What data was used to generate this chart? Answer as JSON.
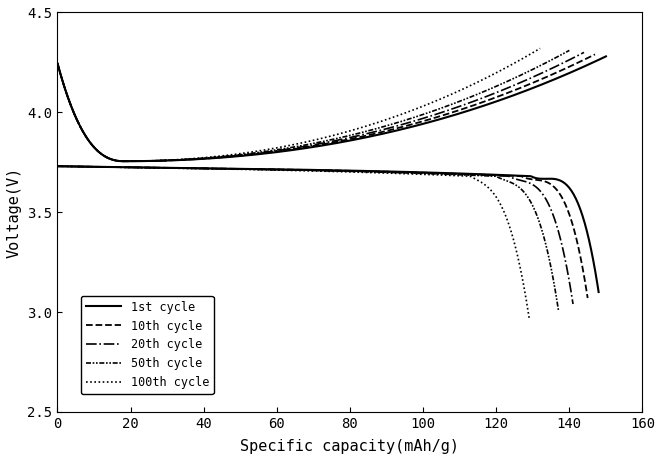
{
  "title": "",
  "xlabel": "Specific capacity(mAh/g)",
  "ylabel": "Voltage(V)",
  "xlim": [
    0,
    160
  ],
  "ylim": [
    2.5,
    4.5
  ],
  "xticks": [
    0,
    20,
    40,
    60,
    80,
    100,
    120,
    140,
    160
  ],
  "yticks": [
    2.5,
    3.0,
    3.5,
    4.0,
    4.5
  ],
  "background_color": "#ffffff",
  "legend_entries": [
    "1st cycle",
    "10th cycle",
    "20th cycle",
    "50th cycle",
    "100th cycle"
  ],
  "cycle_params": [
    {
      "charge_cap": 150,
      "discharge_cap": 148,
      "charge_end": 4.28,
      "discharge_end": 3.1,
      "label": "1st cycle",
      "ls": "-",
      "lw": 1.5
    },
    {
      "charge_cap": 147,
      "discharge_cap": 145,
      "charge_end": 4.29,
      "discharge_end": 3.07,
      "label": "10th cycle",
      "ls": "--",
      "lw": 1.3
    },
    {
      "charge_cap": 144,
      "discharge_cap": 141,
      "charge_end": 4.3,
      "discharge_end": 3.04,
      "label": "20th cycle",
      "ls": "-.",
      "lw": 1.2
    },
    {
      "charge_cap": 140,
      "discharge_cap": 137,
      "charge_end": 4.31,
      "discharge_end": 3.01,
      "label": "50th cycle",
      "ls": "dashdotdot",
      "lw": 1.2
    },
    {
      "charge_cap": 132,
      "discharge_cap": 129,
      "charge_end": 4.32,
      "discharge_end": 2.97,
      "label": "100th cycle",
      "ls": ":",
      "lw": 1.2
    }
  ],
  "charge_start_v": 4.245,
  "charge_min_v": 3.755,
  "charge_min_x": 18,
  "discharge_start_v": 3.73,
  "discharge_flat_v": 3.68
}
